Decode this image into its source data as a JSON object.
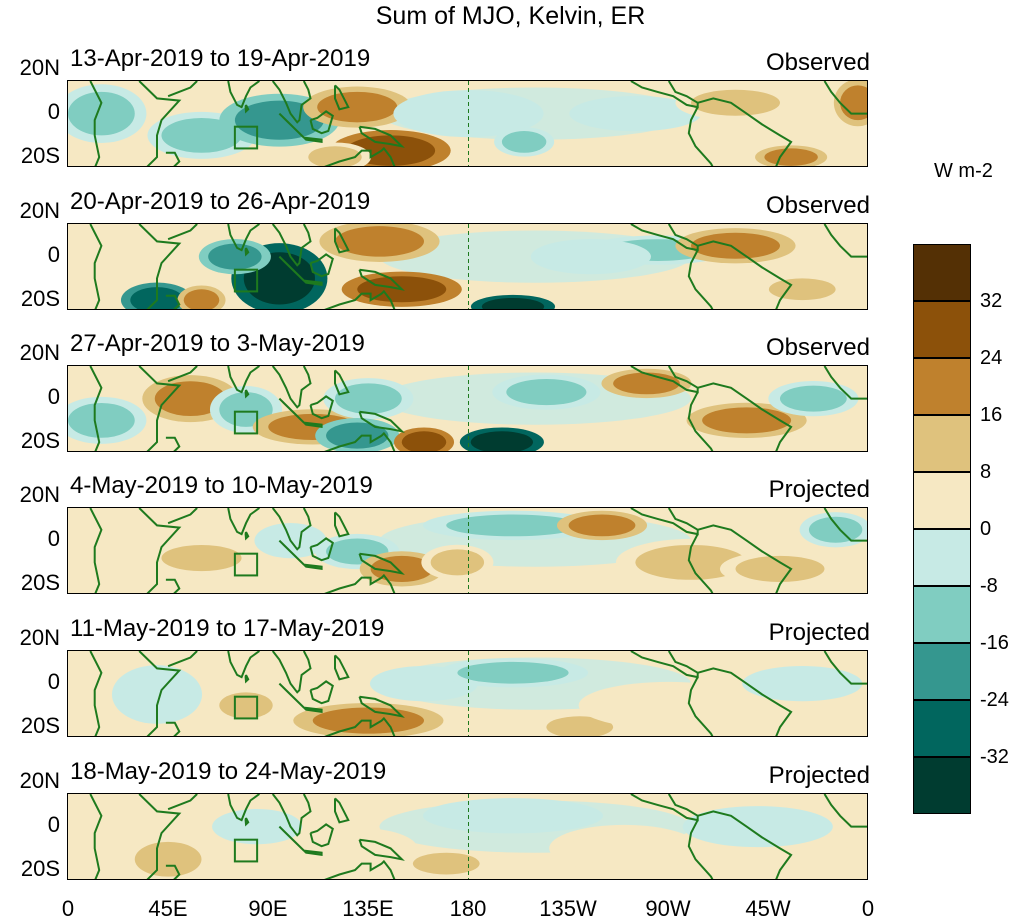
{
  "title": "Sum of MJO, Kelvin, ER",
  "units": "W m-2",
  "lat_labels": [
    "20N",
    "0",
    "20S"
  ],
  "lon_labels": [
    "0",
    "45E",
    "90E",
    "135E",
    "180",
    "135W",
    "90W",
    "45W",
    "0"
  ],
  "panels": [
    {
      "date_range": "13-Apr-2019 to 19-Apr-2019",
      "kind": "Observed"
    },
    {
      "date_range": "20-Apr-2019 to 26-Apr-2019",
      "kind": "Observed"
    },
    {
      "date_range": "27-Apr-2019 to 3-May-2019",
      "kind": "Observed"
    },
    {
      "date_range": "4-May-2019 to 10-May-2019",
      "kind": "Projected"
    },
    {
      "date_range": "11-May-2019 to 17-May-2019",
      "kind": "Projected"
    },
    {
      "date_range": "18-May-2019 to 24-May-2019",
      "kind": "Projected"
    }
  ],
  "colorbar": {
    "labels": [
      "32",
      "24",
      "16",
      "8",
      "0",
      "-8",
      "-16",
      "-24",
      "-32"
    ],
    "colors": [
      "#543005",
      "#8c510a",
      "#bf812d",
      "#dfc27d",
      "#f6e8c3",
      "#c7eae5",
      "#80cdc1",
      "#35978f",
      "#01665e",
      "#003c30"
    ]
  },
  "colors": {
    "coastline": "#1e7a1e",
    "border": "#000000"
  }
}
